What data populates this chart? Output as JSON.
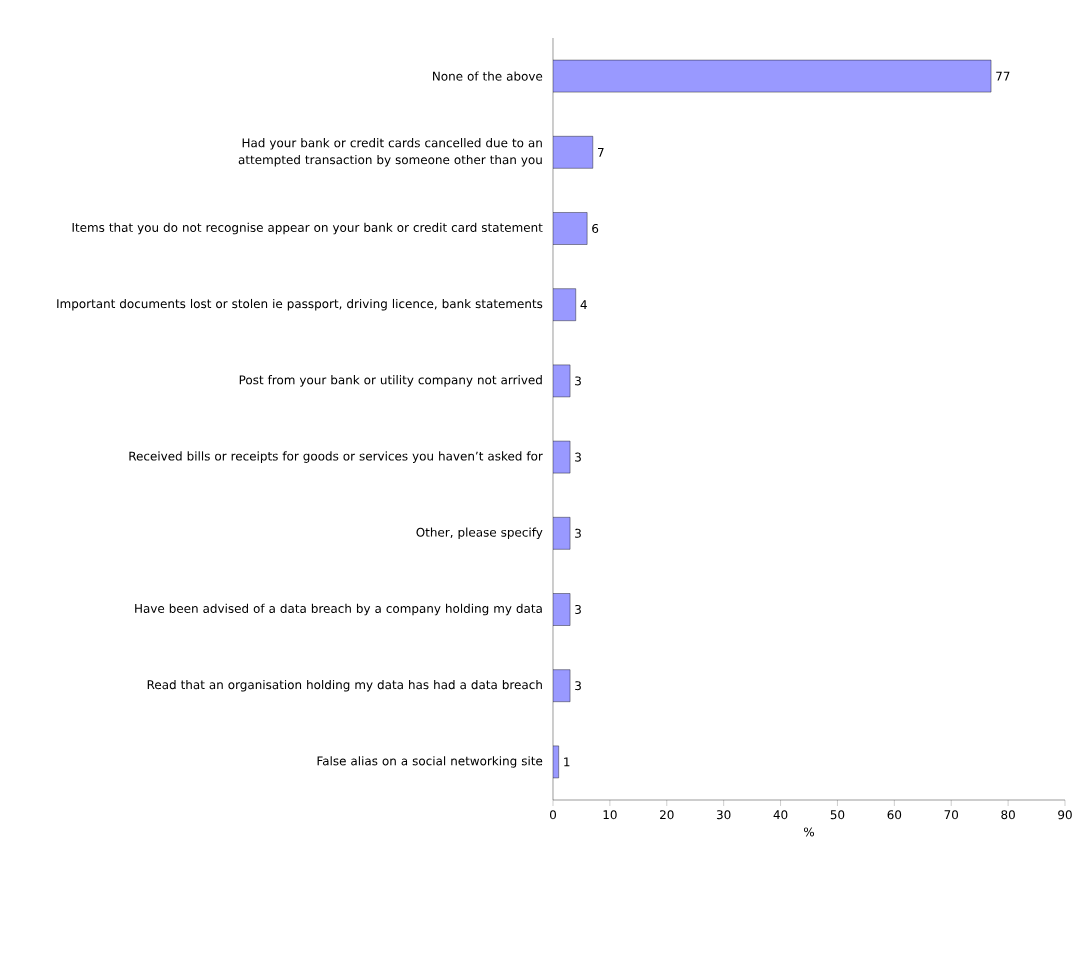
{
  "chart_data": {
    "type": "bar",
    "orientation": "horizontal",
    "xlabel": "%",
    "categories": [
      "None of the above",
      "Had your bank or credit cards cancelled due to an attempted transaction by someone other than you",
      "Items that you do not recognise appear on your bank or credit card statement",
      "Important documents lost or stolen ie passport, driving licence, bank statements",
      "Post from your bank or utility company not arrived",
      "Received bills or receipts for goods or services you haven’t asked for",
      "Other, please specify",
      "Have been advised of a data breach by a company holding my data",
      "Read that an organisation holding my data has had a data breach",
      "False alias on a social networking site"
    ],
    "values": [
      77,
      7,
      6,
      4,
      3,
      3,
      3,
      3,
      3,
      1
    ],
    "color": "#9999ff",
    "xlim": [
      0,
      90
    ],
    "xticks": [
      0,
      10,
      20,
      30,
      40,
      50,
      60,
      70,
      80,
      90
    ],
    "data_labels": true
  }
}
